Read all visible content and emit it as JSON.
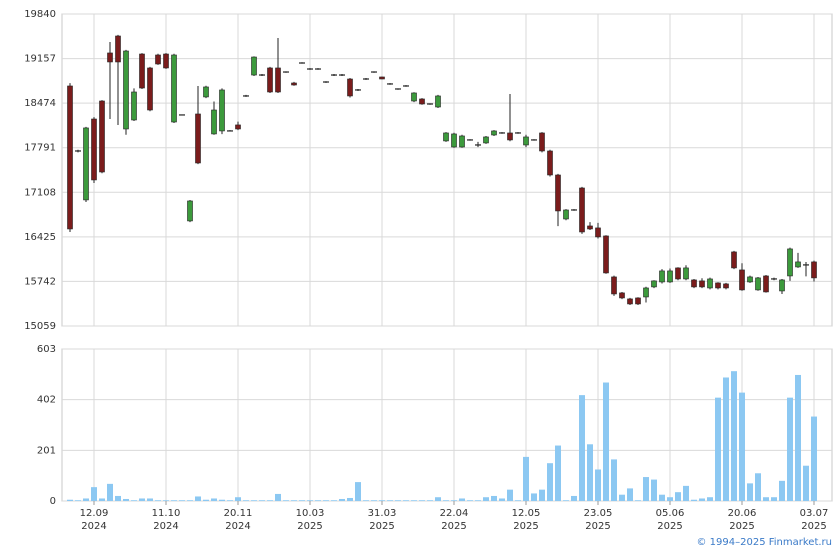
{
  "chart_data": {
    "type": "candlestick",
    "categories": [
      null,
      null,
      null,
      [
        "12.09",
        "2024"
      ],
      null,
      null,
      null,
      null,
      null,
      null,
      null,
      null,
      [
        "11.10",
        "2024"
      ],
      null,
      null,
      null,
      null,
      null,
      null,
      null,
      null,
      [
        "20.11",
        "2024"
      ],
      null,
      null,
      null,
      null,
      null,
      null,
      null,
      null,
      [
        "10.03",
        "2025"
      ],
      null,
      null,
      null,
      null,
      null,
      null,
      null,
      null,
      [
        "31.03",
        "2025"
      ],
      null,
      null,
      null,
      null,
      null,
      null,
      null,
      null,
      [
        "22.04",
        "2025"
      ],
      null,
      null,
      null,
      null,
      null,
      null,
      null,
      null,
      [
        "12.05",
        "2025"
      ],
      null,
      null,
      null,
      null,
      null,
      null,
      null,
      null,
      [
        "23.05",
        "2025"
      ],
      null,
      null,
      null,
      null,
      null,
      null,
      null,
      null,
      [
        "05.06",
        "2025"
      ],
      null,
      null,
      null,
      null,
      null,
      null,
      null,
      null,
      [
        "20.06",
        "2025"
      ],
      null,
      null,
      null,
      null,
      null,
      null,
      null,
      null,
      [
        "03.07",
        "2025"
      ]
    ],
    "open": [
      18737,
      17741,
      16991,
      18231,
      18507,
      19243,
      19503,
      18078,
      18216,
      19227,
      19013,
      19212,
      19227,
      18185,
      18293,
      16669,
      18308,
      18569,
      18002,
      18048,
      18048,
      18140,
      18584,
      18905,
      18905,
      19013,
      19013,
      18951,
      18783,
      19089,
      18997,
      18997,
      18798,
      18905,
      18905,
      18844,
      18676,
      18844,
      18951,
      18875,
      18768,
      18691,
      18737,
      18507,
      18538,
      18461,
      18415,
      17895,
      17802,
      17802,
      17910,
      17833,
      17864,
      17986,
      18017,
      18017,
      18017,
      17833,
      17910,
      18017,
      17741,
      17373,
      16699,
      16837,
      17174,
      16592,
      16562,
      16439,
      15811,
      15566,
      15474,
      15489,
      15504,
      15658,
      15734,
      15734,
      15949,
      15780,
      15765,
      15750,
      15642,
      15719,
      15704,
      16194,
      15918,
      15734,
      15612,
      15826,
      15780,
      15596,
      15826,
      15964,
      15995,
      16041
    ],
    "high": [
      18780,
      17760,
      18110,
      18260,
      18520,
      19411,
      19520,
      19290,
      18700,
      19240,
      19030,
      19230,
      19240,
      19230,
      18300,
      16990,
      18737,
      18740,
      18500,
      18700,
      18060,
      18190,
      18600,
      19190,
      18920,
      19030,
      19473,
      18960,
      18800,
      19100,
      19010,
      19010,
      18810,
      18920,
      18920,
      18860,
      18690,
      18860,
      18960,
      18880,
      18780,
      18700,
      18750,
      18640,
      18550,
      18470,
      18600,
      18030,
      18020,
      17990,
      17920,
      17880,
      17970,
      18060,
      18030,
      18614,
      18030,
      17990,
      17920,
      18030,
      17760,
      17390,
      16850,
      16850,
      17190,
      16650,
      16640,
      16450,
      15830,
      15580,
      15490,
      15500,
      15660,
      15760,
      15930,
      15940,
      15960,
      15990,
      15780,
      15790,
      15800,
      15730,
      15720,
      16210,
      16020,
      15830,
      15810,
      15840,
      15800,
      15780,
      16260,
      16180,
      16040,
      16060
    ],
    "low": [
      16500,
      17720,
      16960,
      17250,
      17400,
      18231,
      18140,
      17990,
      18200,
      18690,
      18350,
      19060,
      19000,
      18170,
      18285,
      16650,
      17540,
      18550,
      17990,
      18000,
      18040,
      18060,
      18570,
      18890,
      18890,
      18630,
      18630,
      18940,
      18740,
      19080,
      18985,
      18985,
      18785,
      18890,
      18890,
      18560,
      18660,
      18830,
      18940,
      18840,
      18755,
      18680,
      18725,
      18490,
      18450,
      18450,
      18400,
      17880,
      17790,
      17790,
      17900,
      17800,
      17850,
      17970,
      18005,
      17890,
      18005,
      17800,
      17900,
      17720,
      17350,
      16590,
      16680,
      16825,
      16470,
      16530,
      16400,
      15860,
      15520,
      15470,
      15380,
      15380,
      15420,
      15640,
      15710,
      15720,
      15760,
      15760,
      15640,
      15640,
      15620,
      15620,
      15620,
      15930,
      15600,
      15720,
      15600,
      15570,
      15760,
      15550,
      15750,
      15950,
      15820,
      15740
    ],
    "close": [
      16546,
      17741,
      18094,
      17297,
      17419,
      19105,
      19105,
      19273,
      18645,
      18706,
      18369,
      19074,
      19013,
      19212,
      18293,
      16975,
      17557,
      18722,
      18369,
      18676,
      18048,
      18078,
      18584,
      19181,
      18905,
      18645,
      18645,
      18951,
      18752,
      19089,
      18997,
      18997,
      18798,
      18905,
      18905,
      18584,
      18676,
      18844,
      18951,
      18844,
      18768,
      18691,
      18737,
      18630,
      18461,
      18461,
      18584,
      18017,
      18002,
      17971,
      17910,
      17833,
      17956,
      18048,
      18017,
      17910,
      18017,
      17956,
      17910,
      17741,
      17373,
      16822,
      16837,
      16837,
      16500,
      16546,
      16424,
      15872,
      15550,
      15489,
      15397,
      15397,
      15642,
      15750,
      15903,
      15903,
      15780,
      15949,
      15658,
      15658,
      15780,
      15642,
      15642,
      15949,
      15612,
      15811,
      15796,
      15581,
      15780,
      15765,
      16240,
      16041,
      15995,
      15796
    ],
    "up_color": "#3c9a3c",
    "down_color": "#7b1c1c",
    "ylim": [
      15059,
      19840
    ],
    "yticks": [
      15059,
      15742,
      16425,
      17108,
      17791,
      18474,
      19157,
      19840
    ],
    "volume": [
      5,
      3,
      10,
      55,
      10,
      68,
      20,
      8,
      3,
      10,
      10,
      3,
      3,
      3,
      3,
      3,
      18,
      5,
      10,
      5,
      3,
      15,
      3,
      3,
      3,
      3,
      28,
      3,
      3,
      3,
      3,
      3,
      3,
      3,
      8,
      12,
      75,
      3,
      3,
      3,
      3,
      3,
      3,
      3,
      3,
      3,
      15,
      3,
      3,
      10,
      3,
      3,
      15,
      20,
      10,
      45,
      3,
      175,
      30,
      45,
      150,
      220,
      3,
      20,
      420,
      225,
      125,
      470,
      165,
      25,
      50,
      3,
      95,
      85,
      25,
      15,
      35,
      60,
      5,
      10,
      15,
      410,
      490,
      515,
      430,
      70,
      110,
      15,
      15,
      80,
      410,
      500,
      140,
      335
    ],
    "volume_color": "#8cc8f2",
    "volume_lim": [
      0,
      603
    ],
    "volume_ticks": [
      0,
      201,
      402,
      603
    ],
    "grid": true
  },
  "footer": "© 1994–2025 Finmarket.ru"
}
